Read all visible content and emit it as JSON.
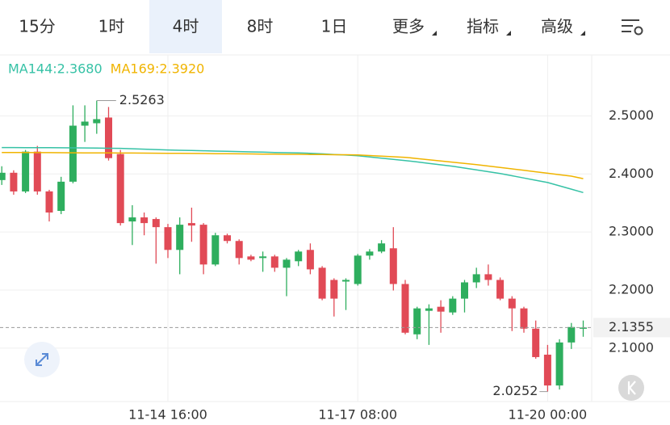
{
  "tabs": [
    "15分",
    "1时",
    "4时",
    "8时",
    "1日",
    "更多",
    "指标",
    "高级"
  ],
  "active_tab": 2,
  "chart_data": {
    "type": "candlestick",
    "categories": [
      null,
      null,
      null,
      null,
      null,
      null,
      null,
      null,
      null,
      null,
      null,
      null,
      null,
      null,
      "11-14 16:00",
      null,
      null,
      null,
      null,
      null,
      null,
      null,
      null,
      null,
      null,
      null,
      null,
      null,
      null,
      null,
      "11-17 08:00",
      null,
      null,
      null,
      null,
      null,
      null,
      null,
      null,
      null,
      null,
      null,
      null,
      null,
      null,
      null,
      "11-20 00:00",
      null,
      null,
      null
    ],
    "open": [
      2.3895,
      2.4021,
      2.3699,
      2.4385,
      2.37,
      2.3364,
      2.3867,
      2.4832,
      2.4874,
      2.4972,
      2.4343,
      2.3182,
      2.3252,
      2.3224,
      2.3084,
      2.2692,
      2.3154,
      2.3126,
      2.2441,
      2.2944,
      2.2846,
      2.258,
      2.2552,
      2.258,
      2.2385,
      2.2497,
      2.2692,
      2.2385,
      2.2175,
      2.2147,
      2.2105,
      2.2594,
      2.2664,
      2.272,
      2.2105,
      2.1238,
      2.1643,
      2.1713,
      2.1615,
      2.1853,
      2.2133,
      2.2273,
      2.2175,
      2.1853,
      2.1685,
      2.1336,
      2.0888,
      2.0357,
      2.1098,
      2.135
    ],
    "high": [
      2.4133,
      2.4063,
      2.4413,
      2.4483,
      2.3727,
      2.3951,
      2.5182,
      2.5182,
      2.5263,
      2.5154,
      2.4413,
      2.3462,
      2.3336,
      2.3252,
      2.314,
      2.3252,
      2.342,
      2.3154,
      2.2986,
      2.2972,
      2.2874,
      2.2608,
      2.2664,
      2.2608,
      2.2552,
      2.2692,
      2.2804,
      2.2413,
      2.2203,
      2.2203,
      2.2622,
      2.2706,
      2.286,
      2.3084,
      2.2175,
      2.1713,
      2.1755,
      2.1825,
      2.1895,
      2.2175,
      2.2385,
      2.2441,
      2.2217,
      2.1895,
      2.1713,
      2.1476,
      2.1056,
      2.1154,
      2.1434,
      2.1476
    ],
    "low": [
      2.3811,
      2.3643,
      2.3671,
      2.3643,
      2.3182,
      2.3308,
      2.3839,
      2.4552,
      2.4692,
      2.4231,
      2.3112,
      2.2776,
      2.2944,
      2.2455,
      2.2552,
      2.2273,
      2.2832,
      2.2273,
      2.2413,
      2.2804,
      2.2441,
      2.2497,
      2.2315,
      2.2315,
      2.1895,
      2.2413,
      2.2273,
      2.1825,
      2.1545,
      2.1657,
      2.2077,
      2.2524,
      2.2636,
      2.1993,
      2.1238,
      2.1154,
      2.1056,
      2.1266,
      2.1573,
      2.1615,
      2.2035,
      2.2077,
      2.1825,
      2.1294,
      2.1266,
      2.0818,
      2.0252,
      2.0287,
      2.0986,
      2.1196
    ],
    "close": [
      2.4021,
      2.3699,
      2.4385,
      2.3699,
      2.3336,
      2.3867,
      2.4832,
      2.4902,
      2.4944,
      2.4273,
      2.3154,
      2.3252,
      2.3154,
      2.3084,
      2.2692,
      2.3126,
      2.3112,
      2.2441,
      2.2944,
      2.2846,
      2.2552,
      2.2524,
      2.258,
      2.2385,
      2.2524,
      2.2664,
      2.2357,
      2.1853,
      2.1853,
      2.2175,
      2.2594,
      2.2664,
      2.2804,
      2.2105,
      2.1266,
      2.1685,
      2.1685,
      2.1629,
      2.1853,
      2.2133,
      2.2273,
      2.2175,
      2.1853,
      2.1685,
      2.1336,
      2.0846,
      2.0357,
      2.1098,
      2.1364,
      2.1355
    ],
    "up_color": "#2eae5e",
    "down_color": "#e14a56",
    "series": [
      {
        "name": "MA144:2.3680",
        "color": "#36c2a6",
        "values": [
          2.4455,
          2.4455,
          2.4454,
          2.4453,
          2.4452,
          2.4451,
          2.445,
          2.4448,
          2.4446,
          2.4443,
          2.4441,
          2.4434,
          2.4427,
          2.442,
          2.4413,
          2.4408,
          2.4404,
          2.4399,
          2.4394,
          2.439,
          2.4385,
          2.438,
          2.4376,
          2.4371,
          2.4366,
          2.4362,
          2.4357,
          2.4347,
          2.4336,
          2.4326,
          2.4315,
          2.4294,
          2.4273,
          2.4252,
          2.4231,
          2.4207,
          2.4182,
          2.4158,
          2.4133,
          2.4102,
          2.407,
          2.4039,
          2.4007,
          2.3969,
          2.393,
          2.3892,
          2.3853,
          2.3795,
          2.3738,
          2.368
        ]
      },
      {
        "name": "MA169:2.3920",
        "color": "#f0b400",
        "values": [
          2.4371,
          2.437,
          2.4369,
          2.4368,
          2.4367,
          2.4366,
          2.4365,
          2.4364,
          2.4363,
          2.4362,
          2.4361,
          2.436,
          2.4359,
          2.4358,
          2.4357,
          2.4355,
          2.4353,
          2.4352,
          2.435,
          2.4348,
          2.4346,
          2.4345,
          2.4343,
          2.4341,
          2.4339,
          2.4338,
          2.4336,
          2.4334,
          2.4332,
          2.4331,
          2.4329,
          2.4318,
          2.4308,
          2.4297,
          2.4287,
          2.4266,
          2.4245,
          2.4224,
          2.4203,
          2.4182,
          2.4161,
          2.4137,
          2.4112,
          2.4088,
          2.4063,
          2.4038,
          2.4013,
          2.3987,
          2.3962,
          2.392
        ]
      }
    ],
    "ylim": [
      2.008,
      2.605
    ],
    "yticks": [
      {
        "value": 2.1,
        "label": "2.1000"
      },
      {
        "value": 2.2,
        "label": "2.2000"
      },
      {
        "value": 2.3,
        "label": "2.3000"
      },
      {
        "value": 2.4,
        "label": "2.4000"
      },
      {
        "value": 2.5,
        "label": "2.5000"
      }
    ],
    "grid": true
  }
}
